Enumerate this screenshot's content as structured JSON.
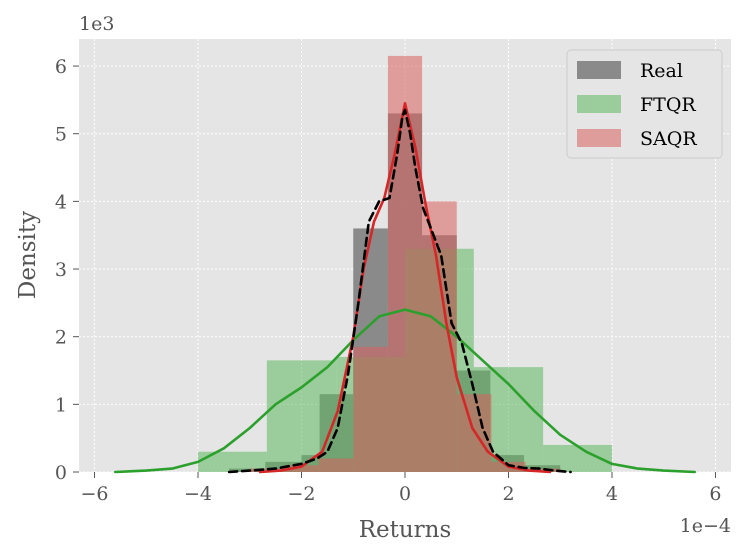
{
  "chart_data": {
    "type": "histogram",
    "xlabel": "Returns",
    "ylabel": "Density",
    "x_offset_label": "1e−4",
    "y_offset_label": "1e3",
    "xlim": [
      -6.3,
      6.3
    ],
    "ylim": [
      0,
      6.4
    ],
    "xticks": [
      -6,
      -4,
      -2,
      0,
      2,
      4,
      6
    ],
    "xtick_labels": [
      "−6",
      "−4",
      "−2",
      "0",
      "2",
      "4",
      "6"
    ],
    "yticks": [
      0,
      1,
      2,
      3,
      4,
      5,
      6
    ],
    "ytick_labels": [
      "0",
      "1",
      "2",
      "3",
      "4",
      "5",
      "6"
    ],
    "grid": true,
    "legend_position": "top-right",
    "series": [
      {
        "name": "Real",
        "color": "#808080",
        "opacity": 0.9,
        "bins": [
          {
            "x0": -3.4,
            "x1": -2.7,
            "height": 0.05
          },
          {
            "x0": -2.7,
            "x1": -2.0,
            "height": 0.15
          },
          {
            "x0": -2.0,
            "x1": -1.65,
            "height": 0.25
          },
          {
            "x0": -1.65,
            "x1": -1.0,
            "height": 1.15
          },
          {
            "x0": -1.0,
            "x1": -0.33,
            "height": 3.6
          },
          {
            "x0": -0.33,
            "x1": 0.33,
            "height": 5.3
          },
          {
            "x0": 0.33,
            "x1": 1.0,
            "height": 3.5
          },
          {
            "x0": 1.0,
            "x1": 1.65,
            "height": 1.5
          },
          {
            "x0": 1.65,
            "x1": 2.3,
            "height": 0.25
          },
          {
            "x0": 2.3,
            "x1": 3.0,
            "height": 0.1
          }
        ],
        "kde": {
          "color": "#000000",
          "dashed": true,
          "x": [
            -3.4,
            -3.0,
            -2.5,
            -2.0,
            -1.7,
            -1.5,
            -1.3,
            -1.1,
            -0.9,
            -0.7,
            -0.5,
            -0.3,
            -0.15,
            -0.05,
            0.0,
            0.1,
            0.2,
            0.35,
            0.5,
            0.7,
            0.9,
            1.1,
            1.3,
            1.5,
            1.7,
            2.0,
            2.3,
            2.6,
            2.9,
            3.2
          ],
          "y": [
            0.0,
            0.02,
            0.05,
            0.12,
            0.2,
            0.3,
            0.65,
            1.45,
            2.5,
            3.7,
            4.0,
            4.05,
            4.7,
            5.25,
            5.35,
            5.0,
            4.5,
            3.9,
            3.6,
            3.2,
            2.2,
            1.9,
            1.3,
            0.65,
            0.3,
            0.1,
            0.06,
            0.05,
            0.02,
            0.0
          ]
        }
      },
      {
        "name": "FTQR",
        "color": "#5fb85f",
        "opacity": 0.55,
        "bins": [
          {
            "x0": -4.0,
            "x1": -2.67,
            "height": 0.3
          },
          {
            "x0": -2.67,
            "x1": -1.33,
            "height": 1.65
          },
          {
            "x0": -1.33,
            "x1": 0.0,
            "height": 1.7
          },
          {
            "x0": 0.0,
            "x1": 1.33,
            "height": 3.3
          },
          {
            "x0": 1.33,
            "x1": 2.67,
            "height": 1.55
          },
          {
            "x0": 2.67,
            "x1": 4.0,
            "height": 0.4
          }
        ],
        "kde": {
          "color": "#2ca02c",
          "dashed": false,
          "x": [
            -5.6,
            -5.0,
            -4.5,
            -4.0,
            -3.5,
            -3.0,
            -2.5,
            -2.0,
            -1.5,
            -1.0,
            -0.5,
            0.0,
            0.5,
            1.0,
            1.5,
            2.0,
            2.5,
            3.0,
            3.5,
            4.0,
            4.5,
            5.0,
            5.6
          ],
          "y": [
            0.0,
            0.02,
            0.05,
            0.15,
            0.35,
            0.65,
            1.0,
            1.25,
            1.55,
            1.95,
            2.3,
            2.4,
            2.3,
            2.0,
            1.65,
            1.3,
            0.9,
            0.55,
            0.3,
            0.12,
            0.05,
            0.02,
            0.0
          ]
        }
      },
      {
        "name": "SAQR",
        "color": "#d9605f",
        "opacity": 0.55,
        "bins": [
          {
            "x0": -3.0,
            "x1": -2.33,
            "height": 0.05
          },
          {
            "x0": -2.33,
            "x1": -1.67,
            "height": 0.1
          },
          {
            "x0": -1.67,
            "x1": -1.0,
            "height": 0.2
          },
          {
            "x0": -1.0,
            "x1": -0.33,
            "height": 1.85
          },
          {
            "x0": -0.33,
            "x1": 0.33,
            "height": 6.15
          },
          {
            "x0": 0.33,
            "x1": 1.0,
            "height": 4.0
          },
          {
            "x0": 1.0,
            "x1": 1.67,
            "height": 1.15
          },
          {
            "x0": 1.67,
            "x1": 2.33,
            "height": 0.15
          },
          {
            "x0": 2.33,
            "x1": 3.0,
            "height": 0.05
          }
        ],
        "kde": {
          "color": "#d62728",
          "dashed": false,
          "x": [
            -2.8,
            -2.4,
            -2.0,
            -1.6,
            -1.3,
            -1.0,
            -0.8,
            -0.6,
            -0.4,
            -0.2,
            0.0,
            0.2,
            0.4,
            0.6,
            0.8,
            1.0,
            1.3,
            1.6,
            2.0,
            2.4,
            2.8
          ],
          "y": [
            0.0,
            0.02,
            0.08,
            0.3,
            0.9,
            2.0,
            3.0,
            3.7,
            4.05,
            4.7,
            5.45,
            4.8,
            3.95,
            3.2,
            2.2,
            1.4,
            0.65,
            0.3,
            0.08,
            0.02,
            0.0
          ]
        }
      }
    ]
  }
}
